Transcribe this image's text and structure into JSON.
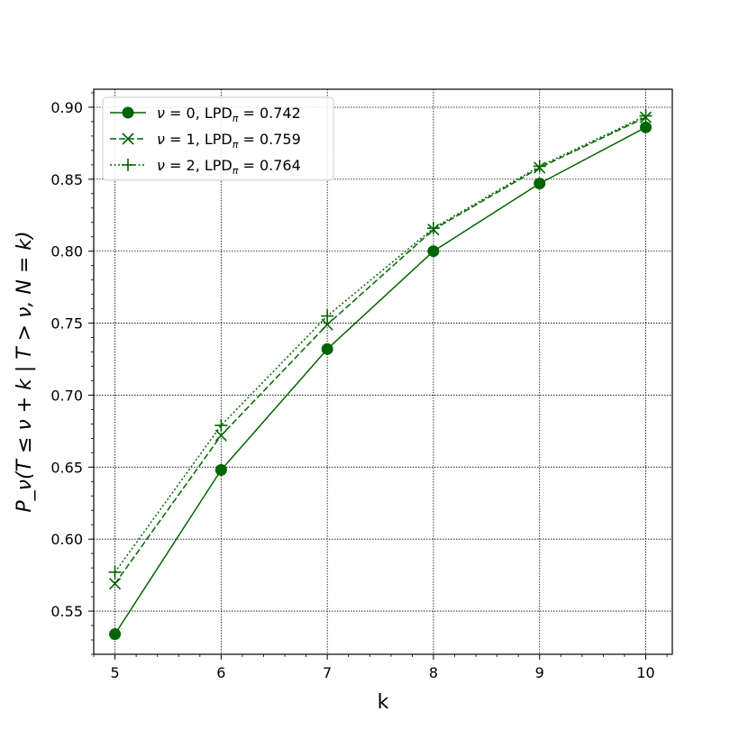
{
  "chart_data": {
    "type": "line",
    "title": "",
    "xlabel": "k",
    "ylabel": "P_ν(T ≤ ν + k | T > ν, N = k)",
    "x": [
      5,
      6,
      7,
      8,
      9,
      10
    ],
    "xlim": [
      4.8,
      10.25
    ],
    "ylim": [
      0.52,
      0.9125
    ],
    "x_ticks": [
      5,
      6,
      7,
      8,
      9,
      10
    ],
    "y_ticks": [
      0.55,
      0.6,
      0.65,
      0.7,
      0.75,
      0.8,
      0.85,
      0.9
    ],
    "y_tick_labels": [
      "0.55",
      "0.60",
      "0.65",
      "0.70",
      "0.75",
      "0.80",
      "0.85",
      "0.90"
    ],
    "grid": true,
    "legend_position": "top-left",
    "color": "#006400",
    "series": [
      {
        "name": "ν = 0, LPD_π = 0.742",
        "greek": "ν",
        "sub": "0",
        "lpd_sub": "π",
        "lpd_value": "0.742",
        "values": [
          0.534,
          0.648,
          0.732,
          0.8,
          0.847,
          0.886
        ],
        "linestyle": "solid",
        "marker": "circle"
      },
      {
        "name": "ν = 1, LPD_π = 0.759",
        "greek": "ν",
        "sub": "1",
        "lpd_sub": "π",
        "lpd_value": "0.759",
        "values": [
          0.569,
          0.672,
          0.749,
          0.815,
          0.858,
          0.893
        ],
        "linestyle": "dashed",
        "marker": "x"
      },
      {
        "name": "ν = 2, LPD_π = 0.764",
        "greek": "ν",
        "sub": "2",
        "lpd_sub": "π",
        "lpd_value": "0.764",
        "values": [
          0.577,
          0.679,
          0.755,
          0.816,
          0.859,
          0.894
        ],
        "linestyle": "dotted",
        "marker": "plus"
      }
    ]
  }
}
